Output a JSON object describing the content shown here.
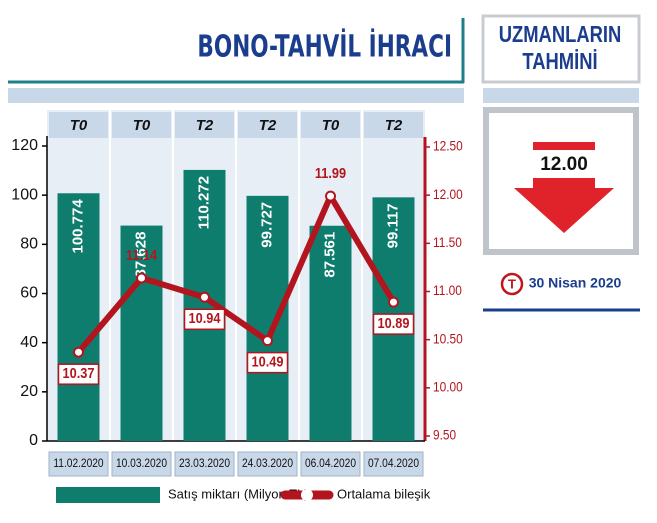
{
  "chart_data": {
    "type": "bar",
    "title": "BONO-TAHVİL İHRACI",
    "categories": [
      "11.02.2020",
      "10.03.2020",
      "23.03.2020",
      "24.03.2020",
      "06.04.2020",
      "07.04.2020"
    ],
    "tags": [
      "T0",
      "T0",
      "T2",
      "T2",
      "T0",
      "T2"
    ],
    "series": [
      {
        "name": "Satış miktarı (Milyon TL)",
        "color": "#0f7d6e",
        "values": [
          100.774,
          87.628,
          110.272,
          99.727,
          87.561,
          99.117
        ]
      },
      {
        "name": "Ortalama bileşik",
        "color": "#b3151f",
        "type": "line",
        "axis": "y2",
        "values": [
          10.37,
          11.14,
          10.94,
          10.49,
          11.99,
          10.89
        ]
      }
    ],
    "ylim": [
      0,
      120
    ],
    "yticks": [
      0,
      20,
      40,
      60,
      80,
      100,
      120
    ],
    "y2lim": [
      9.5,
      12.5
    ],
    "y2ticks": [
      {
        "value": 9.5,
        "label": "9.50"
      },
      {
        "value": 10,
        "label": "10.00"
      },
      {
        "value": 10.5,
        "label": "10.50"
      },
      {
        "value": 11,
        "label": "11.00"
      },
      {
        "value": 11.5,
        "label": "11.50"
      },
      {
        "value": 12,
        "label": "12.00"
      },
      {
        "value": 12.5,
        "label": "12.50"
      }
    ]
  },
  "sidebar": {
    "title_line1": "UZMANLARIN",
    "title_line2": "TAHMİNİ",
    "forecast": "12.00",
    "logo": "T",
    "date": "30 Nisan 2020"
  }
}
